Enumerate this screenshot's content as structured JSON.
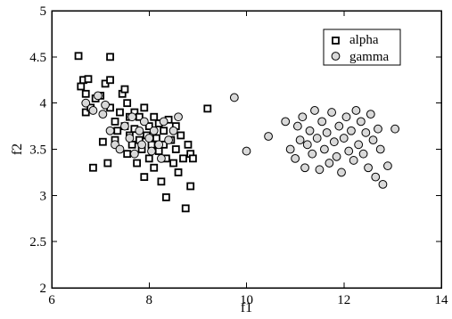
{
  "chart_data": {
    "type": "scatter",
    "title": "",
    "xlabel": "f1",
    "ylabel": "f2",
    "xlim": [
      6,
      14
    ],
    "ylim": [
      2,
      5
    ],
    "x_ticks": [
      6,
      8,
      10,
      12,
      14
    ],
    "y_ticks": [
      2,
      2.5,
      3,
      3.5,
      4,
      4.5,
      5
    ],
    "legend_position": "top-right",
    "grid": false,
    "series": [
      {
        "name": "alpha",
        "marker": "open-square",
        "color": "#000000",
        "points": [
          [
            6.55,
            4.51
          ],
          [
            6.6,
            4.18
          ],
          [
            6.65,
            4.25
          ],
          [
            6.7,
            4.1
          ],
          [
            6.75,
            4.26
          ],
          [
            6.7,
            3.9
          ],
          [
            6.8,
            3.95
          ],
          [
            6.85,
            3.3
          ],
          [
            6.9,
            4.05
          ],
          [
            7.0,
            4.08
          ],
          [
            7.05,
            3.58
          ],
          [
            7.1,
            4.21
          ],
          [
            7.15,
            3.35
          ],
          [
            7.2,
            4.5
          ],
          [
            7.2,
            3.95
          ],
          [
            7.2,
            4.25
          ],
          [
            7.3,
            3.8
          ],
          [
            7.3,
            3.6
          ],
          [
            7.35,
            3.7
          ],
          [
            7.4,
            3.9
          ],
          [
            7.45,
            4.1
          ],
          [
            7.5,
            4.15
          ],
          [
            7.5,
            3.75
          ],
          [
            7.55,
            3.45
          ],
          [
            7.55,
            4.0
          ],
          [
            7.6,
            3.65
          ],
          [
            7.6,
            3.85
          ],
          [
            7.65,
            3.55
          ],
          [
            7.7,
            3.9
          ],
          [
            7.7,
            3.72
          ],
          [
            7.75,
            3.35
          ],
          [
            7.8,
            3.6
          ],
          [
            7.8,
            3.85
          ],
          [
            7.85,
            3.5
          ],
          [
            7.9,
            3.95
          ],
          [
            7.9,
            3.2
          ],
          [
            7.95,
            3.65
          ],
          [
            8.0,
            3.4
          ],
          [
            8.0,
            3.75
          ],
          [
            8.05,
            3.55
          ],
          [
            8.1,
            3.3
          ],
          [
            8.1,
            3.85
          ],
          [
            8.15,
            3.62
          ],
          [
            8.2,
            3.48
          ],
          [
            8.2,
            3.78
          ],
          [
            8.25,
            3.15
          ],
          [
            8.3,
            3.55
          ],
          [
            8.3,
            3.7
          ],
          [
            8.35,
            3.4
          ],
          [
            8.35,
            2.98
          ],
          [
            8.4,
            3.82
          ],
          [
            8.45,
            3.6
          ],
          [
            8.5,
            3.35
          ],
          [
            8.55,
            3.5
          ],
          [
            8.55,
            3.75
          ],
          [
            8.6,
            3.25
          ],
          [
            8.65,
            3.65
          ],
          [
            8.7,
            3.4
          ],
          [
            8.75,
            2.86
          ],
          [
            8.8,
            3.55
          ],
          [
            8.85,
            3.45
          ],
          [
            8.85,
            3.1
          ],
          [
            8.9,
            3.4
          ],
          [
            9.2,
            3.94
          ]
        ]
      },
      {
        "name": "gamma",
        "marker": "grey-circle",
        "color": "#d9d9d9",
        "points": [
          [
            6.7,
            4.0
          ],
          [
            6.85,
            3.92
          ],
          [
            6.95,
            4.08
          ],
          [
            7.05,
            3.88
          ],
          [
            7.1,
            3.98
          ],
          [
            7.2,
            3.7
          ],
          [
            7.3,
            3.55
          ],
          [
            7.4,
            3.5
          ],
          [
            7.5,
            3.75
          ],
          [
            7.6,
            3.62
          ],
          [
            7.65,
            3.85
          ],
          [
            7.7,
            3.45
          ],
          [
            7.8,
            3.7
          ],
          [
            7.85,
            3.55
          ],
          [
            7.9,
            3.8
          ],
          [
            8.0,
            3.62
          ],
          [
            8.05,
            3.48
          ],
          [
            8.1,
            3.7
          ],
          [
            8.2,
            3.55
          ],
          [
            8.25,
            3.4
          ],
          [
            8.3,
            3.8
          ],
          [
            8.4,
            3.6
          ],
          [
            8.5,
            3.7
          ],
          [
            8.6,
            3.85
          ],
          [
            9.75,
            4.06
          ],
          [
            10.0,
            3.48
          ],
          [
            10.45,
            3.64
          ],
          [
            10.8,
            3.8
          ],
          [
            10.9,
            3.5
          ],
          [
            11.0,
            3.4
          ],
          [
            11.05,
            3.75
          ],
          [
            11.1,
            3.6
          ],
          [
            11.15,
            3.85
          ],
          [
            11.2,
            3.3
          ],
          [
            11.25,
            3.55
          ],
          [
            11.3,
            3.7
          ],
          [
            11.35,
            3.45
          ],
          [
            11.4,
            3.92
          ],
          [
            11.45,
            3.62
          ],
          [
            11.5,
            3.28
          ],
          [
            11.55,
            3.8
          ],
          [
            11.6,
            3.5
          ],
          [
            11.65,
            3.68
          ],
          [
            11.7,
            3.35
          ],
          [
            11.75,
            3.9
          ],
          [
            11.8,
            3.58
          ],
          [
            11.85,
            3.42
          ],
          [
            11.9,
            3.75
          ],
          [
            11.95,
            3.25
          ],
          [
            12.0,
            3.62
          ],
          [
            12.05,
            3.85
          ],
          [
            12.1,
            3.48
          ],
          [
            12.15,
            3.7
          ],
          [
            12.2,
            3.38
          ],
          [
            12.25,
            3.92
          ],
          [
            12.3,
            3.55
          ],
          [
            12.35,
            3.8
          ],
          [
            12.4,
            3.45
          ],
          [
            12.45,
            3.68
          ],
          [
            12.5,
            3.3
          ],
          [
            12.55,
            3.88
          ],
          [
            12.6,
            3.6
          ],
          [
            12.65,
            3.2
          ],
          [
            12.7,
            3.72
          ],
          [
            12.75,
            3.5
          ],
          [
            12.8,
            3.12
          ],
          [
            12.9,
            3.32
          ],
          [
            13.05,
            3.72
          ]
        ]
      }
    ]
  }
}
